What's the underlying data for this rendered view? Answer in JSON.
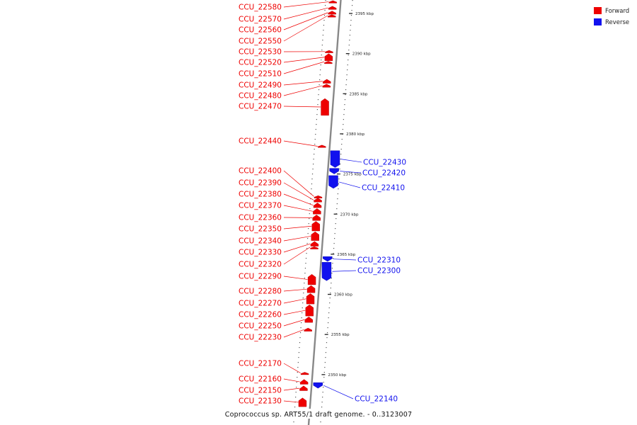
{
  "colors": {
    "forward": "#ee0000",
    "reverse": "#1111ee",
    "backbone": "#888888",
    "tick": "#222222"
  },
  "legend": {
    "forward_label": "Forward",
    "reverse_label": "Reverse"
  },
  "caption": "Coprococcus sp. ART55/1 draft genome. - 0..3123007",
  "scale": {
    "unit": "kbp",
    "ticks": [
      {
        "kbp": 2395,
        "label": "2395 kbp"
      },
      {
        "kbp": 2390,
        "label": "2390 kbp"
      },
      {
        "kbp": 2385,
        "label": "2385 kbp"
      },
      {
        "kbp": 2380,
        "label": "2380 kbp"
      },
      {
        "kbp": 2375,
        "label": "2375 kbp"
      },
      {
        "kbp": 2370,
        "label": "2370 kbp"
      },
      {
        "kbp": 2365,
        "label": "2365 kbp"
      },
      {
        "kbp": 2360,
        "label": "2360 kbp"
      },
      {
        "kbp": 2355,
        "label": "2355 kbp"
      },
      {
        "kbp": 2350,
        "label": "2350 kbp"
      }
    ]
  },
  "forward_genes": [
    {
      "id": "CCU_22580",
      "start": 2396.3,
      "end": 2396.6
    },
    {
      "id": "CCU_22570",
      "start": 2395.5,
      "end": 2395.9
    },
    {
      "id": "CCU_22560",
      "start": 2394.9,
      "end": 2395.3
    },
    {
      "id": "CCU_22550",
      "start": 2394.6,
      "end": 2394.85
    },
    {
      "id": "CCU_22530",
      "start": 2390.1,
      "end": 2390.4
    },
    {
      "id": "CCU_22520",
      "start": 2389.1,
      "end": 2390.0
    },
    {
      "id": "CCU_22510",
      "start": 2388.9,
      "end": 2389.05
    },
    {
      "id": "CCU_22490",
      "start": 2386.3,
      "end": 2386.8
    },
    {
      "id": "CCU_22480",
      "start": 2385.8,
      "end": 2386.2
    },
    {
      "id": "CCU_22470",
      "start": 2382.3,
      "end": 2384.4
    },
    {
      "id": "CCU_22440",
      "start": 2378.3,
      "end": 2378.6
    },
    {
      "id": "CCU_22400",
      "start": 2372.1,
      "end": 2372.3
    },
    {
      "id": "CCU_22390",
      "start": 2371.5,
      "end": 2372.0
    },
    {
      "id": "CCU_22380",
      "start": 2370.8,
      "end": 2371.4
    },
    {
      "id": "CCU_22370",
      "start": 2370.0,
      "end": 2370.7
    },
    {
      "id": "CCU_22360",
      "start": 2369.2,
      "end": 2369.9
    },
    {
      "id": "CCU_22350",
      "start": 2367.9,
      "end": 2369.1
    },
    {
      "id": "CCU_22340",
      "start": 2366.7,
      "end": 2367.8
    },
    {
      "id": "CCU_22330",
      "start": 2366.0,
      "end": 2366.6
    },
    {
      "id": "CCU_22320",
      "start": 2365.8,
      "end": 2365.95
    },
    {
      "id": "CCU_22290",
      "start": 2361.2,
      "end": 2362.5
    },
    {
      "id": "CCU_22280",
      "start": 2360.2,
      "end": 2361.1
    },
    {
      "id": "CCU_22270",
      "start": 2358.8,
      "end": 2360.1
    },
    {
      "id": "CCU_22260",
      "start": 2357.3,
      "end": 2358.7
    },
    {
      "id": "CCU_22250",
      "start": 2356.5,
      "end": 2357.2
    },
    {
      "id": "CCU_22230",
      "start": 2355.4,
      "end": 2355.8
    },
    {
      "id": "CCU_22170",
      "start": 2350.1,
      "end": 2350.3
    },
    {
      "id": "CCU_22160",
      "start": 2348.8,
      "end": 2349.4
    },
    {
      "id": "CCU_22150",
      "start": 2348.0,
      "end": 2348.6
    },
    {
      "id": "CCU_22130",
      "start": 2346.0,
      "end": 2347.1
    }
  ],
  "reverse_genes": [
    {
      "id": "CCU_22430",
      "start": 2375.8,
      "end": 2377.9
    },
    {
      "id": "CCU_22420",
      "start": 2375.0,
      "end": 2375.7
    },
    {
      "id": "CCU_22410",
      "start": 2373.2,
      "end": 2374.8
    },
    {
      "id": "CCU_22310",
      "start": 2364.1,
      "end": 2364.7
    },
    {
      "id": "CCU_22300",
      "start": 2361.7,
      "end": 2364.0
    },
    {
      "id": "CCU_22140",
      "start": 2348.3,
      "end": 2349.0
    }
  ]
}
